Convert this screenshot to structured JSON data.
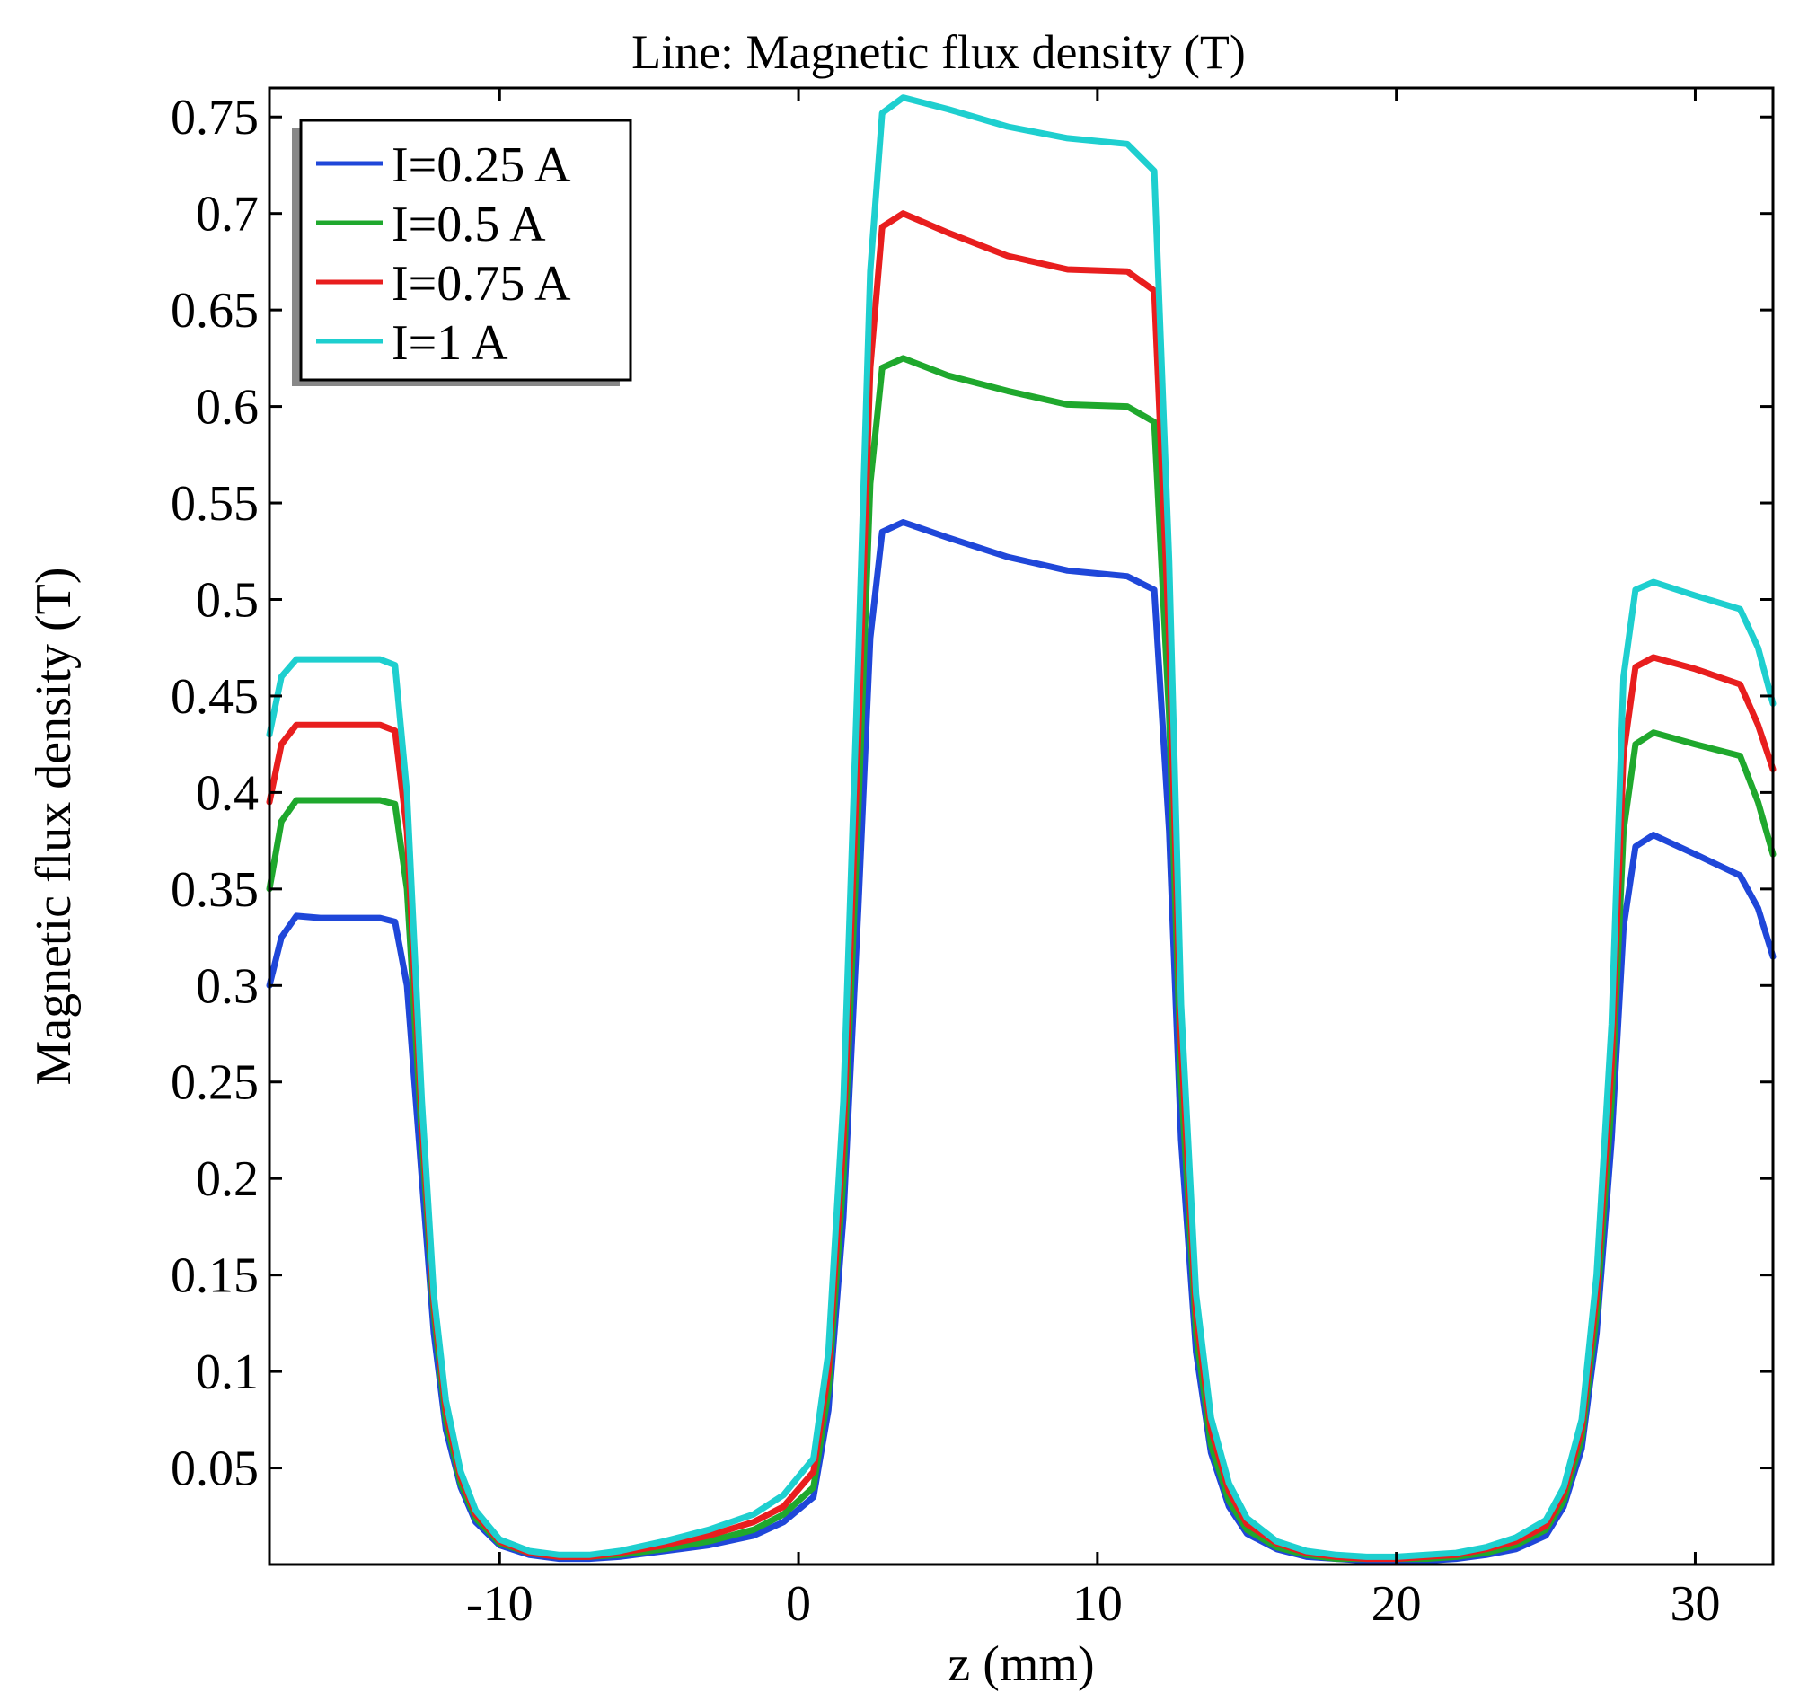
{
  "chart_data": {
    "type": "line",
    "title": "Line: Magnetic flux density (T)",
    "xlabel": "z (mm)",
    "ylabel": "Magnetic flux density (T)",
    "xlim": [
      -17.7,
      32.6
    ],
    "ylim": [
      0.0,
      0.765
    ],
    "xticks": [
      -10,
      0,
      10,
      20,
      30
    ],
    "xtick_labels": [
      "-10",
      "0",
      "10",
      "20",
      "30"
    ],
    "yticks": [
      0.05,
      0.1,
      0.15,
      0.2,
      0.25,
      0.3,
      0.35,
      0.4,
      0.45,
      0.5,
      0.55,
      0.6,
      0.65,
      0.7,
      0.75
    ],
    "ytick_labels": [
      "0.05",
      "0.1",
      "0.15",
      "0.2",
      "0.25",
      "0.3",
      "0.35",
      "0.4",
      "0.45",
      "0.5",
      "0.55",
      "0.6",
      "0.65",
      "0.7",
      "0.75"
    ],
    "grid": false,
    "legend_position": "top-left",
    "x": [
      -17.7,
      -17.3,
      -16.8,
      -16.0,
      -15.0,
      -14.0,
      -13.5,
      -13.1,
      -12.6,
      -12.2,
      -11.8,
      -11.3,
      -10.8,
      -10.0,
      -9.0,
      -8.0,
      -7.0,
      -6.0,
      -4.5,
      -3.0,
      -1.5,
      -0.5,
      0.5,
      1.0,
      1.5,
      2.0,
      2.4,
      2.8,
      3.5,
      5.0,
      7.0,
      9.0,
      11.0,
      11.9,
      12.4,
      12.8,
      13.3,
      13.8,
      14.4,
      15.0,
      16.0,
      17.0,
      18.0,
      19.0,
      20.0,
      21.0,
      22.0,
      23.0,
      24.0,
      25.0,
      25.6,
      26.2,
      26.7,
      27.2,
      27.6,
      28.0,
      28.6,
      30.0,
      31.5,
      32.1,
      32.6
    ],
    "series": [
      {
        "name": "I=0.25 A",
        "color": "#1f47d9",
        "values": [
          0.3,
          0.325,
          0.336,
          0.335,
          0.335,
          0.335,
          0.333,
          0.3,
          0.2,
          0.12,
          0.07,
          0.04,
          0.022,
          0.01,
          0.005,
          0.003,
          0.003,
          0.004,
          0.007,
          0.01,
          0.015,
          0.022,
          0.035,
          0.08,
          0.18,
          0.34,
          0.48,
          0.535,
          0.54,
          0.532,
          0.522,
          0.515,
          0.512,
          0.505,
          0.38,
          0.22,
          0.11,
          0.058,
          0.03,
          0.016,
          0.008,
          0.004,
          0.003,
          0.002,
          0.002,
          0.002,
          0.003,
          0.005,
          0.008,
          0.015,
          0.03,
          0.06,
          0.12,
          0.22,
          0.33,
          0.372,
          0.378,
          0.368,
          0.357,
          0.34,
          0.315
        ]
      },
      {
        "name": "I=0.5 A",
        "color": "#1fa82d",
        "values": [
          0.35,
          0.385,
          0.396,
          0.396,
          0.396,
          0.396,
          0.394,
          0.35,
          0.22,
          0.13,
          0.075,
          0.042,
          0.024,
          0.011,
          0.006,
          0.004,
          0.004,
          0.005,
          0.008,
          0.012,
          0.018,
          0.026,
          0.04,
          0.09,
          0.2,
          0.39,
          0.56,
          0.62,
          0.625,
          0.616,
          0.608,
          0.601,
          0.6,
          0.592,
          0.44,
          0.25,
          0.12,
          0.062,
          0.033,
          0.018,
          0.009,
          0.005,
          0.003,
          0.003,
          0.003,
          0.003,
          0.004,
          0.006,
          0.01,
          0.018,
          0.033,
          0.065,
          0.13,
          0.24,
          0.38,
          0.425,
          0.431,
          0.425,
          0.419,
          0.395,
          0.368
        ]
      },
      {
        "name": "I=0.75 A",
        "color": "#e81e1e",
        "values": [
          0.395,
          0.425,
          0.435,
          0.435,
          0.435,
          0.435,
          0.432,
          0.38,
          0.23,
          0.135,
          0.08,
          0.045,
          0.026,
          0.012,
          0.006,
          0.004,
          0.004,
          0.006,
          0.01,
          0.015,
          0.022,
          0.03,
          0.048,
          0.1,
          0.22,
          0.43,
          0.62,
          0.693,
          0.7,
          0.69,
          0.678,
          0.671,
          0.67,
          0.66,
          0.48,
          0.27,
          0.13,
          0.07,
          0.038,
          0.021,
          0.011,
          0.006,
          0.004,
          0.003,
          0.003,
          0.004,
          0.005,
          0.008,
          0.012,
          0.02,
          0.037,
          0.07,
          0.14,
          0.26,
          0.42,
          0.465,
          0.47,
          0.464,
          0.456,
          0.435,
          0.412
        ]
      },
      {
        "name": "I=1 A",
        "color": "#1ecfcf",
        "values": [
          0.43,
          0.46,
          0.469,
          0.469,
          0.469,
          0.469,
          0.466,
          0.4,
          0.24,
          0.14,
          0.085,
          0.048,
          0.028,
          0.013,
          0.007,
          0.005,
          0.005,
          0.007,
          0.012,
          0.018,
          0.026,
          0.036,
          0.055,
          0.11,
          0.24,
          0.47,
          0.67,
          0.752,
          0.76,
          0.754,
          0.745,
          0.739,
          0.736,
          0.722,
          0.52,
          0.29,
          0.14,
          0.076,
          0.042,
          0.024,
          0.012,
          0.007,
          0.005,
          0.004,
          0.004,
          0.005,
          0.006,
          0.009,
          0.014,
          0.023,
          0.04,
          0.075,
          0.15,
          0.28,
          0.46,
          0.505,
          0.509,
          0.502,
          0.495,
          0.475,
          0.446
        ]
      }
    ]
  }
}
